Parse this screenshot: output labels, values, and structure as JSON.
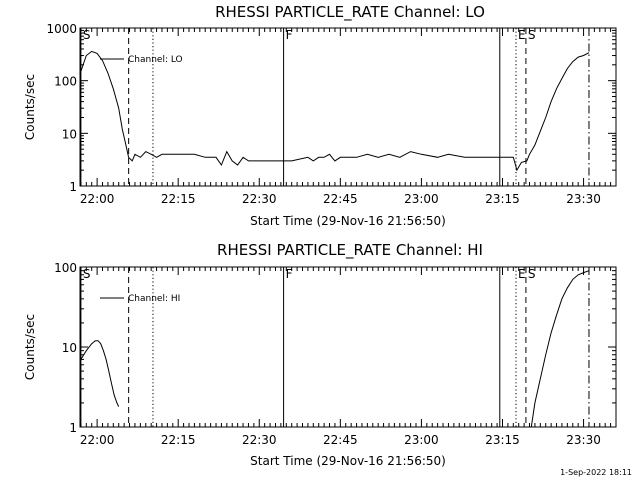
{
  "footer": "1-Sep-2022 18:11",
  "chart_data": [
    {
      "type": "line",
      "title": "RHESSI PARTICLE_RATE Channel: LO",
      "xlabel": "Start Time (29-Nov-16 21:56:50)",
      "ylabel": "Counts/sec",
      "yscale": "log",
      "ylim": [
        1,
        1000
      ],
      "xlim": [
        "21:56:50",
        "23:36:00"
      ],
      "ytick_labels": [
        "1",
        "10",
        "100",
        "1000"
      ],
      "xtick_labels": [
        "22:00",
        "22:15",
        "22:30",
        "22:45",
        "23:00",
        "23:15",
        "23:30"
      ],
      "legend_label": "Channel: LO",
      "markers": [
        {
          "label": "S",
          "time": "21:57:00",
          "style": "solid"
        },
        {
          "label": "",
          "time": "22:05:50",
          "style": "dashed"
        },
        {
          "label": "",
          "time": "22:10:20",
          "style": "dotted"
        },
        {
          "label": "F",
          "time": "22:34:30",
          "style": "solid"
        },
        {
          "label": "",
          "time": "23:14:30",
          "style": "solid"
        },
        {
          "label": "E",
          "time": "23:17:30",
          "style": "dotted"
        },
        {
          "label": "S",
          "time": "23:19:20",
          "style": "dashed"
        },
        {
          "label": "",
          "time": "23:31:00",
          "style": "dashdot"
        }
      ],
      "series": [
        {
          "x": [
            "21:57:00",
            "21:58:00",
            "21:59:00",
            "22:00:00",
            "22:01:00",
            "22:02:00",
            "22:03:00",
            "22:04:00",
            "22:04:40",
            "22:05:20",
            "22:05:50",
            "22:06:30",
            "22:07:00",
            "22:08:00",
            "22:09:00",
            "22:10:00",
            "22:11:00",
            "22:12:00",
            "22:13:00",
            "22:15:00",
            "22:18:00",
            "22:20:00",
            "22:21:00",
            "22:22:00",
            "22:23:00",
            "22:24:00",
            "22:25:00",
            "22:26:00",
            "22:27:00",
            "22:28:00",
            "22:30:00",
            "22:33:00",
            "22:36:00",
            "22:39:00",
            "22:40:00",
            "22:41:00",
            "22:42:00",
            "22:43:00",
            "22:44:00",
            "22:45:00",
            "22:48:00",
            "22:50:00",
            "22:52:00",
            "22:54:00",
            "22:56:00",
            "22:58:00",
            "23:00:00",
            "23:03:00",
            "23:05:00",
            "23:08:00",
            "23:10:00",
            "23:12:00",
            "23:14:00",
            "23:16:00",
            "23:17:00",
            "23:17:40",
            "23:18:30",
            "23:19:30",
            "23:20:00",
            "23:21:00",
            "23:22:00",
            "23:23:00",
            "23:24:00",
            "23:25:00",
            "23:26:00",
            "23:27:00",
            "23:28:00",
            "23:29:00",
            "23:30:00",
            "23:31:00"
          ],
          "y": [
            150,
            300,
            360,
            330,
            240,
            140,
            70,
            30,
            12,
            6,
            3.5,
            3,
            4,
            3.5,
            4.5,
            4,
            3.5,
            4,
            4,
            4,
            4,
            3.5,
            3.5,
            3.5,
            2.5,
            4.5,
            3,
            2.5,
            3.5,
            3,
            3,
            3,
            3,
            3.5,
            3,
            3.5,
            3.5,
            4,
            3,
            3.5,
            3.5,
            4,
            3.5,
            4,
            3.5,
            4.5,
            4,
            3.5,
            4,
            3.5,
            3.5,
            3.5,
            3.5,
            3.5,
            3.5,
            2,
            2.8,
            3,
            4,
            6,
            11,
            20,
            40,
            70,
            110,
            170,
            230,
            280,
            300,
            340
          ]
        }
      ]
    },
    {
      "type": "line",
      "title": "RHESSI PARTICLE_RATE Channel: HI",
      "xlabel": "Start Time (29-Nov-16 21:56:50)",
      "ylabel": "Counts/sec",
      "yscale": "log",
      "ylim": [
        1,
        100
      ],
      "xlim": [
        "21:56:50",
        "23:36:00"
      ],
      "ytick_labels": [
        "1",
        "10",
        "100"
      ],
      "xtick_labels": [
        "22:00",
        "22:15",
        "22:30",
        "22:45",
        "23:00",
        "23:15",
        "23:30"
      ],
      "legend_label": "Channel: HI",
      "markers": [
        {
          "label": "S",
          "time": "21:57:00",
          "style": "solid"
        },
        {
          "label": "",
          "time": "22:05:50",
          "style": "dashed"
        },
        {
          "label": "",
          "time": "22:10:20",
          "style": "dotted"
        },
        {
          "label": "F",
          "time": "22:34:30",
          "style": "solid"
        },
        {
          "label": "",
          "time": "23:14:30",
          "style": "solid"
        },
        {
          "label": "E",
          "time": "23:17:30",
          "style": "dotted"
        },
        {
          "label": "S",
          "time": "23:19:20",
          "style": "dashed"
        },
        {
          "label": "",
          "time": "23:31:00",
          "style": "dashdot"
        }
      ],
      "series": [
        {
          "x": [
            "21:57:00",
            "21:58:00",
            "21:59:00",
            "21:59:40",
            "22:00:10",
            "22:00:40",
            "22:01:10",
            "22:01:40",
            "22:02:10",
            "22:02:40",
            "22:03:10",
            "22:03:40",
            "22:04:00"
          ],
          "y": [
            7,
            9,
            11,
            12,
            12,
            11,
            9,
            7,
            5,
            3.5,
            2.5,
            2,
            1.8
          ],
          "segment": "a"
        },
        {
          "x": [
            "23:20:20",
            "23:21:00",
            "23:22:00",
            "23:23:00",
            "23:24:00",
            "23:25:00",
            "23:26:00",
            "23:27:00",
            "23:28:00",
            "23:29:00",
            "23:30:00",
            "23:31:00"
          ],
          "y": [
            1,
            2,
            4,
            8,
            15,
            25,
            40,
            55,
            70,
            80,
            85,
            90
          ],
          "segment": "b"
        }
      ]
    }
  ]
}
